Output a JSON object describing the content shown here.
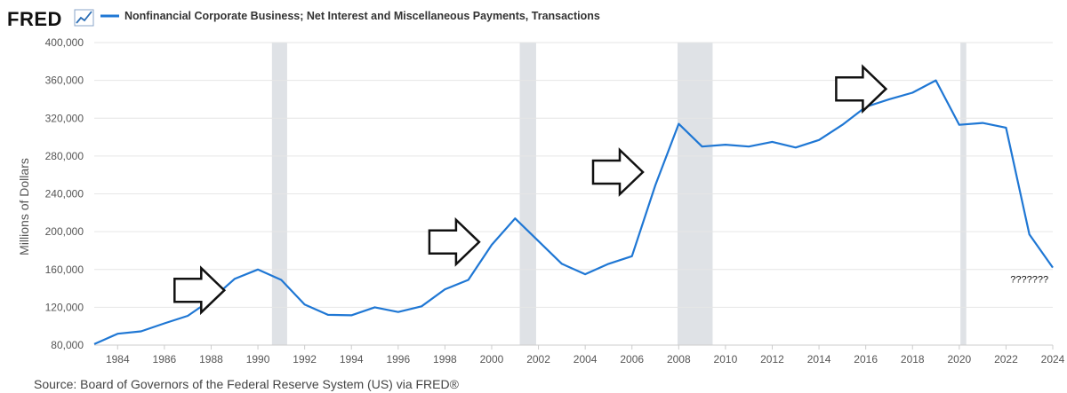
{
  "header": {
    "logo_text": "FRED",
    "logo_icon": "chart-line-icon",
    "legend_label": "Nonfinancial Corporate Business; Net Interest and Miscellaneous Payments, Transactions"
  },
  "footer": {
    "source": "Source: Board of Governors of the Federal Reserve System (US) via FRED®"
  },
  "colors": {
    "series": "#1f77d4",
    "recession": "#dfe2e6",
    "grid": "#e6e6e6",
    "arrow": "#111111"
  },
  "chart_data": {
    "type": "line",
    "ylabel": "Millions of Dollars",
    "xlim": [
      1983,
      2024
    ],
    "ylim": [
      80000,
      400000
    ],
    "y_ticks": [
      80000,
      120000,
      160000,
      200000,
      240000,
      280000,
      320000,
      360000,
      400000
    ],
    "x_ticks": [
      1984,
      1986,
      1988,
      1990,
      1992,
      1994,
      1996,
      1998,
      2000,
      2002,
      2004,
      2006,
      2008,
      2010,
      2012,
      2014,
      2016,
      2018,
      2020,
      2022,
      2024
    ],
    "grid": "horizontal",
    "recessions": [
      [
        1990.6,
        1991.25
      ],
      [
        2001.2,
        2001.9
      ],
      [
        2007.95,
        2009.45
      ],
      [
        2020.05,
        2020.3
      ]
    ],
    "series": [
      {
        "name": "Nonfinancial Corporate Business; Net Interest and Miscellaneous Payments, Transactions",
        "x": [
          1983,
          1984,
          1985,
          1986,
          1987,
          1988,
          1989,
          1990,
          1991,
          1992,
          1993,
          1994,
          1995,
          1996,
          1997,
          1998,
          1999,
          2000,
          2001,
          2002,
          2003,
          2004,
          2005,
          2006,
          2007,
          2008,
          2009,
          2010,
          2011,
          2012,
          2013,
          2014,
          2015,
          2016,
          2017,
          2018,
          2019,
          2020,
          2021,
          2022,
          2023,
          2024
        ],
        "values": [
          81000,
          92000,
          94500,
          103000,
          111000,
          128000,
          150000,
          160000,
          149000,
          123000,
          112000,
          111500,
          120000,
          115000,
          121000,
          139000,
          149000,
          186000,
          214000,
          190000,
          166000,
          155000,
          166000,
          174000,
          249000,
          314000,
          290000,
          292000,
          290000,
          295000,
          289000,
          297000,
          313000,
          332000,
          340000,
          347000,
          360000,
          313000,
          315000,
          310000,
          197000,
          162000
        ]
      }
    ],
    "annotations": [
      {
        "type": "arrow",
        "direction": "right",
        "x": 1987.5,
        "y": 138000
      },
      {
        "type": "arrow",
        "direction": "right",
        "x": 1998.4,
        "y": 189000
      },
      {
        "type": "arrow",
        "direction": "right",
        "x": 2005.4,
        "y": 263000
      },
      {
        "type": "arrow",
        "direction": "right",
        "x": 2015.8,
        "y": 351000
      },
      {
        "type": "text",
        "text": "???????",
        "x": 2023.0,
        "y": 150000
      }
    ]
  }
}
